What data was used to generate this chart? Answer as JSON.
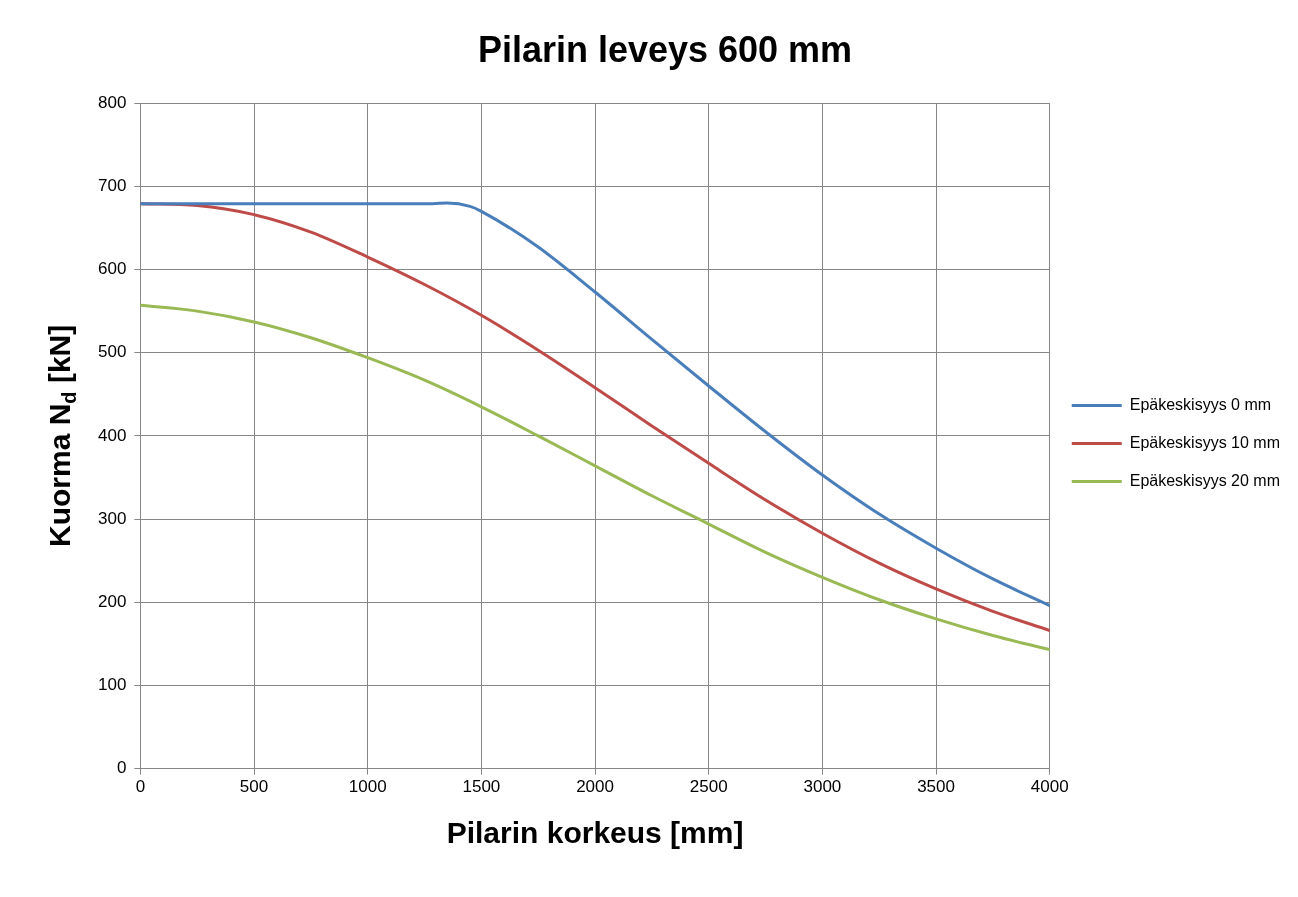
{
  "chart_data": {
    "type": "line",
    "title": "Pilarin leveys 600 mm",
    "xlabel": "Pilarin korkeus [mm]",
    "ylabel": "Kuorma N$_{d}$ [kN]",
    "xlim": [
      0,
      4000
    ],
    "xticks": [
      0,
      500,
      1000,
      1500,
      2000,
      2500,
      3000,
      3500,
      4000
    ],
    "ylim": [
      0,
      800
    ],
    "yticks": [
      0,
      100,
      200,
      300,
      400,
      500,
      600,
      700,
      800
    ],
    "grid": true,
    "legend": "right",
    "marker": "none",
    "line_style": "solid",
    "series": [
      {
        "name": "Epäkeskisyys 0 mm",
        "color": "#4a7ebb",
        "x": [
          0,
          500,
          1000,
          1250,
          1350,
          1450,
          1500,
          1750,
          2000,
          2250,
          2500,
          2750,
          3000,
          3250,
          3500,
          3750,
          4000
        ],
        "values": [
          679,
          679,
          679,
          679,
          680,
          676,
          670,
          627,
          573,
          516,
          460,
          405,
          353,
          306,
          265,
          228,
          196
        ]
      },
      {
        "name": "Epäkeskisyys 10 mm",
        "color": "#be4b48",
        "x": [
          0,
          250,
          500,
          750,
          1000,
          1250,
          1500,
          1750,
          2000,
          2250,
          2500,
          2750,
          3000,
          3250,
          3500,
          3750,
          4000
        ],
        "values": [
          679,
          677,
          666,
          645,
          615,
          582,
          545,
          503,
          458,
          412,
          367,
          323,
          283,
          247,
          216,
          189,
          166
        ]
      },
      {
        "name": "Epäkeskisyys 20 mm",
        "color": "#98b954",
        "x": [
          0,
          250,
          500,
          750,
          1000,
          1250,
          1500,
          1750,
          2000,
          2250,
          2500,
          2750,
          3000,
          3250,
          3500,
          3750,
          4000
        ],
        "values": [
          557,
          550,
          537,
          518,
          494,
          467,
          435,
          400,
          364,
          328,
          294,
          260,
          230,
          203,
          180,
          160,
          143
        ]
      }
    ]
  }
}
